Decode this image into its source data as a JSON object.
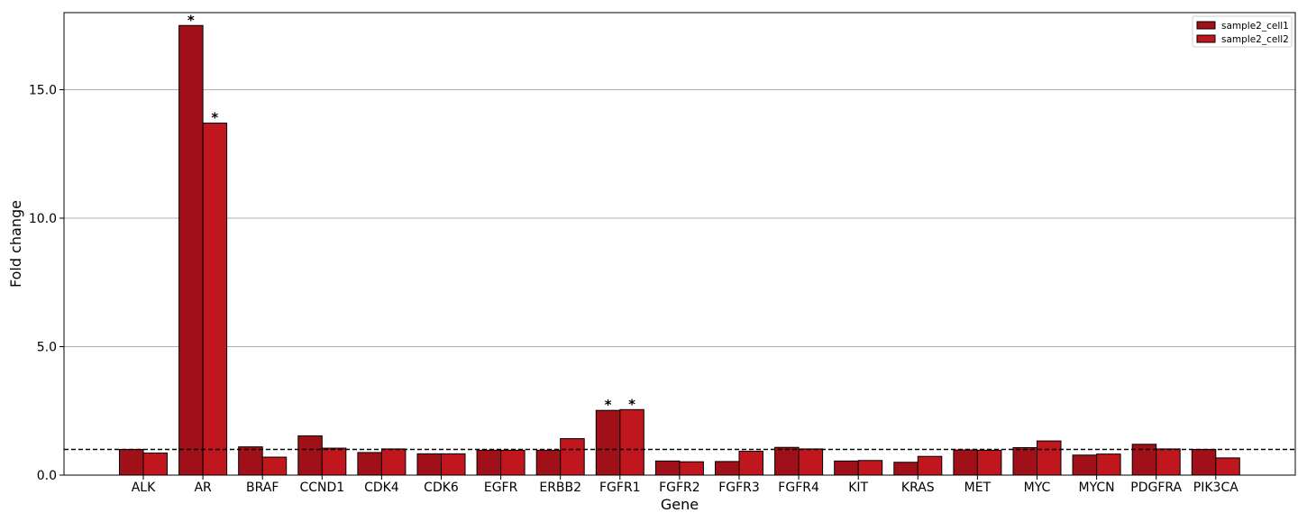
{
  "chart_data": {
    "type": "bar",
    "xlabel": "Gene",
    "ylabel": "Fold change",
    "ylim": [
      0,
      18
    ],
    "yticks": [
      "0.0",
      "5.0",
      "10.0",
      "15.0"
    ],
    "ytick_values": [
      0,
      5,
      10,
      15
    ],
    "grid": "horizontal",
    "reference_line": {
      "y": 1.0,
      "style": "dashed"
    },
    "legend_position": "top-right",
    "categories": [
      "ALK",
      "AR",
      "BRAF",
      "CCND1",
      "CDK4",
      "CDK6",
      "EGFR",
      "ERBB2",
      "FGFR1",
      "FGFR2",
      "FGFR3",
      "FGFR4",
      "KIT",
      "KRAS",
      "MET",
      "MYC",
      "MYCN",
      "PDGFRA",
      "PIK3CA"
    ],
    "series": [
      {
        "name": "sample2_cell1",
        "color": "#a01018",
        "values": [
          1.0,
          17.5,
          1.1,
          1.53,
          0.88,
          0.83,
          0.97,
          0.97,
          2.52,
          0.55,
          0.53,
          1.08,
          0.55,
          0.5,
          0.98,
          1.07,
          0.78,
          1.2,
          1.0
        ],
        "significant": [
          false,
          true,
          false,
          false,
          false,
          false,
          false,
          false,
          true,
          false,
          false,
          false,
          false,
          false,
          false,
          false,
          false,
          false,
          false
        ]
      },
      {
        "name": "sample2_cell2",
        "color": "#c0161e",
        "values": [
          0.86,
          13.7,
          0.7,
          1.05,
          1.02,
          0.83,
          0.97,
          1.42,
          2.55,
          0.52,
          0.93,
          1.02,
          0.57,
          0.73,
          0.97,
          1.33,
          0.82,
          1.02,
          0.67
        ],
        "significant": [
          false,
          true,
          false,
          false,
          false,
          false,
          false,
          false,
          true,
          false,
          false,
          false,
          false,
          false,
          false,
          false,
          false,
          false,
          false
        ]
      }
    ],
    "significance_marker": "*"
  }
}
